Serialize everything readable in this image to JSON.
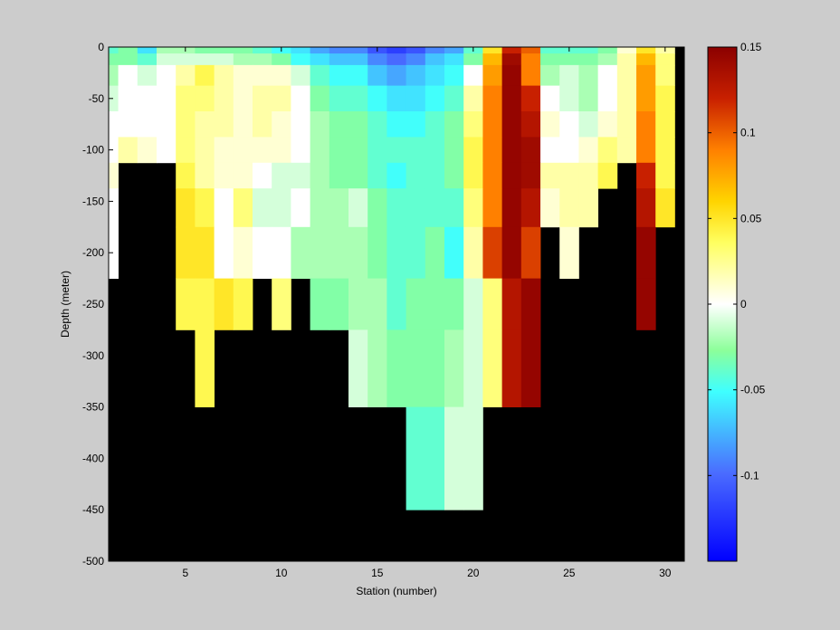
{
  "chart_data": {
    "type": "heatmap",
    "title": "",
    "xlabel": "Station (number)",
    "ylabel": "Depth (meter)",
    "xlim": [
      1,
      31
    ],
    "ylim": [
      -500,
      0
    ],
    "x_ticks": [
      5,
      10,
      15,
      20,
      25,
      30
    ],
    "y_ticks": [
      0,
      -50,
      -100,
      -150,
      -200,
      -250,
      -300,
      -350,
      -400,
      -450,
      -500
    ],
    "x_tick_labels": [
      "5",
      "10",
      "15",
      "20",
      "25",
      "30"
    ],
    "y_tick_labels": [
      "0",
      "-50",
      "-100",
      "-150",
      "-200",
      "-250",
      "-300",
      "-350",
      "-400",
      "-450",
      "-500"
    ],
    "colorbar": {
      "clim": [
        -0.15,
        0.15
      ],
      "ticks": [
        0.15,
        0.1,
        0.05,
        0,
        -0.05,
        -0.1
      ],
      "tick_labels": [
        "0.15",
        "0.1",
        "0.05",
        "0",
        "-0.05",
        "-0.1"
      ],
      "colormap": "jet-centered-white",
      "position": "right"
    },
    "background_color": "#000000",
    "stations": [
      1,
      2,
      3,
      4,
      5,
      6,
      7,
      8,
      9,
      10,
      11,
      12,
      13,
      14,
      15,
      16,
      17,
      18,
      19,
      20,
      21,
      22,
      23,
      24,
      25,
      26,
      27,
      28,
      29,
      30
    ],
    "depths": [
      -2.5,
      -10,
      -25,
      -50,
      -75,
      -100,
      -125,
      -150,
      -200,
      -250,
      -300,
      -400
    ],
    "values": [
      [
        -0.04,
        -0.03,
        -0.06,
        -0.02,
        -0.02,
        -0.03,
        -0.03,
        -0.03,
        -0.04,
        -0.05,
        -0.06,
        -0.08,
        -0.09,
        -0.09,
        -0.11,
        -0.12,
        -0.11,
        -0.09,
        -0.08,
        -0.04,
        0.05,
        0.12,
        0.1,
        -0.04,
        -0.04,
        -0.04,
        -0.03,
        0.01,
        0.05,
        0.02
      ],
      [
        -0.03,
        -0.03,
        -0.04,
        -0.01,
        -0.01,
        -0.01,
        -0.01,
        -0.02,
        -0.02,
        -0.03,
        -0.05,
        -0.06,
        -0.07,
        -0.07,
        -0.09,
        -0.1,
        -0.09,
        -0.07,
        -0.06,
        -0.03,
        0.07,
        0.14,
        0.09,
        -0.03,
        -0.03,
        -0.03,
        -0.02,
        0.02,
        0.07,
        0.03
      ],
      [
        -0.02,
        0.0,
        -0.01,
        0.0,
        0.02,
        0.04,
        0.02,
        0.01,
        0.01,
        0.01,
        -0.01,
        -0.04,
        -0.05,
        -0.05,
        -0.07,
        -0.08,
        -0.07,
        -0.06,
        -0.05,
        0.0,
        0.08,
        0.145,
        0.09,
        -0.02,
        -0.01,
        -0.02,
        0.0,
        0.02,
        0.08,
        0.03
      ],
      [
        -0.01,
        0.0,
        0.0,
        0.0,
        0.03,
        0.03,
        0.02,
        0.01,
        0.02,
        0.02,
        0.0,
        -0.03,
        -0.04,
        -0.04,
        -0.05,
        -0.06,
        -0.06,
        -0.05,
        -0.04,
        0.02,
        0.09,
        0.145,
        0.12,
        0.0,
        -0.01,
        -0.02,
        0.0,
        0.02,
        0.08,
        0.04
      ],
      [
        0.0,
        0.0,
        0.0,
        0.0,
        0.03,
        0.02,
        0.02,
        0.01,
        0.02,
        0.01,
        0.0,
        -0.02,
        -0.03,
        -0.03,
        -0.04,
        -0.05,
        -0.05,
        -0.04,
        -0.03,
        0.03,
        0.09,
        0.145,
        0.13,
        0.01,
        0.0,
        -0.01,
        0.01,
        0.02,
        0.09,
        0.04
      ],
      [
        0.0,
        0.02,
        0.01,
        0.0,
        0.03,
        0.02,
        0.01,
        0.01,
        0.01,
        0.01,
        0.0,
        -0.02,
        -0.03,
        -0.03,
        -0.04,
        -0.04,
        -0.04,
        -0.04,
        -0.03,
        0.04,
        0.09,
        0.145,
        0.14,
        0.0,
        0.0,
        0.01,
        0.03,
        0.02,
        0.09,
        0.04
      ],
      [
        0.01,
        null,
        null,
        null,
        0.04,
        0.02,
        0.01,
        0.01,
        0.0,
        -0.01,
        -0.01,
        -0.02,
        -0.03,
        -0.03,
        -0.04,
        -0.05,
        -0.04,
        -0.04,
        -0.03,
        0.04,
        0.09,
        0.145,
        0.14,
        0.02,
        0.02,
        0.02,
        0.04,
        null,
        0.12,
        0.04
      ],
      [
        0.0,
        null,
        null,
        null,
        0.05,
        0.04,
        0.0,
        0.03,
        -0.01,
        -0.01,
        0.0,
        -0.02,
        -0.02,
        -0.01,
        -0.03,
        -0.04,
        -0.04,
        -0.04,
        -0.04,
        0.03,
        0.09,
        0.145,
        0.13,
        0.01,
        0.02,
        0.02,
        null,
        null,
        0.13,
        0.05
      ],
      [
        0.0,
        null,
        null,
        null,
        0.05,
        0.05,
        0.0,
        0.01,
        0.0,
        0.0,
        -0.02,
        -0.02,
        -0.02,
        -0.02,
        -0.03,
        -0.04,
        -0.04,
        -0.03,
        -0.05,
        0.02,
        0.11,
        0.145,
        0.11,
        null,
        0.01,
        null,
        null,
        null,
        0.145,
        null
      ],
      [
        null,
        null,
        null,
        null,
        0.04,
        0.04,
        0.05,
        0.04,
        null,
        0.03,
        null,
        -0.03,
        -0.03,
        -0.02,
        -0.02,
        -0.04,
        -0.03,
        -0.03,
        -0.03,
        -0.01,
        0.03,
        0.13,
        0.145,
        null,
        null,
        null,
        null,
        null,
        0.145,
        null
      ],
      [
        null,
        null,
        null,
        null,
        null,
        0.04,
        null,
        null,
        null,
        null,
        null,
        null,
        null,
        -0.01,
        -0.02,
        -0.03,
        -0.03,
        -0.03,
        -0.02,
        -0.01,
        0.03,
        0.13,
        0.145,
        null,
        null,
        null,
        null,
        null,
        null,
        null
      ],
      [
        null,
        null,
        null,
        null,
        null,
        null,
        null,
        null,
        null,
        null,
        null,
        null,
        null,
        null,
        null,
        null,
        -0.04,
        -0.04,
        -0.01,
        -0.01,
        null,
        null,
        null,
        null,
        null,
        null,
        null,
        null,
        null,
        null
      ]
    ]
  }
}
